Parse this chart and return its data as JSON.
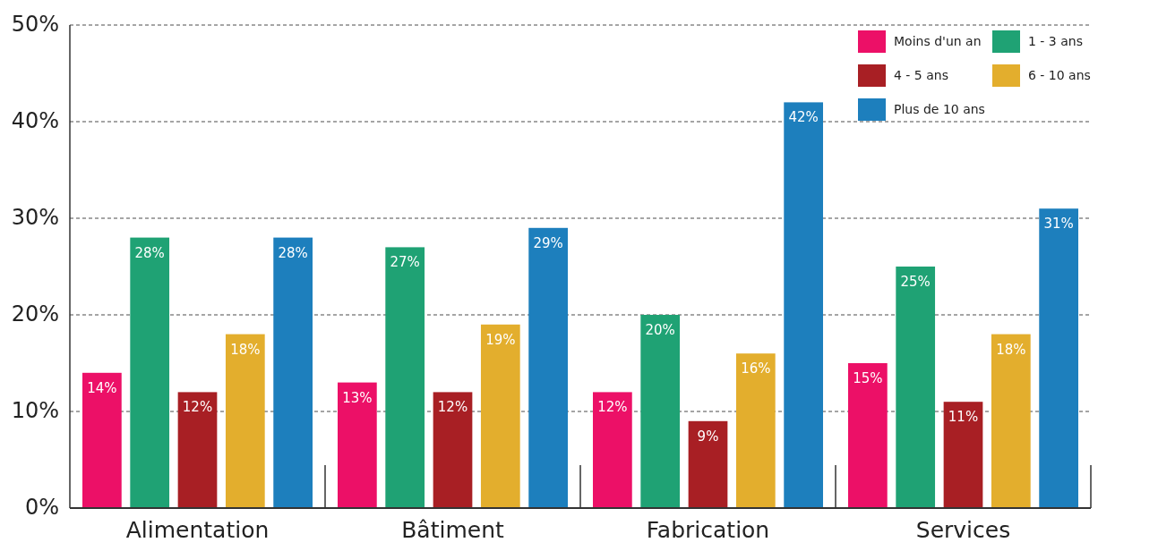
{
  "chart_data": {
    "type": "bar",
    "categories": [
      "Alimentation",
      "Bâtiment",
      "Fabrication",
      "Services"
    ],
    "series": [
      {
        "name": "Moins d'un an",
        "color": "#ec1067",
        "values": [
          14,
          13,
          12,
          15
        ]
      },
      {
        "name": "1 - 3 ans",
        "color": "#1fa274",
        "values": [
          28,
          27,
          20,
          25
        ]
      },
      {
        "name": "4 - 5 ans",
        "color": "#a81f24",
        "values": [
          12,
          12,
          9,
          11
        ]
      },
      {
        "name": "6 - 10 ans",
        "color": "#e3ae2d",
        "values": [
          18,
          19,
          16,
          18
        ]
      },
      {
        "name": "Plus de 10 ans",
        "color": "#1d7fbd",
        "values": [
          28,
          29,
          42,
          31
        ]
      }
    ],
    "ylim": [
      0,
      50
    ],
    "yticks": [
      {
        "value": 0,
        "label": "0%"
      },
      {
        "value": 10,
        "label": "10%"
      },
      {
        "value": 20,
        "label": "20%"
      },
      {
        "value": 30,
        "label": "30%"
      },
      {
        "value": 40,
        "label": "40%"
      },
      {
        "value": 50,
        "label": "50%"
      }
    ],
    "value_labels": [
      [
        "14%",
        "13%",
        "12%",
        "15%"
      ],
      [
        "28%",
        "27%",
        "20%",
        "25%"
      ],
      [
        "12%",
        "12%",
        "9%",
        "11%"
      ],
      [
        "18%",
        "19%",
        "16%",
        "18%"
      ],
      [
        "28%",
        "29%",
        "42%",
        "31%"
      ]
    ],
    "grid": "y",
    "legend": "top right"
  }
}
